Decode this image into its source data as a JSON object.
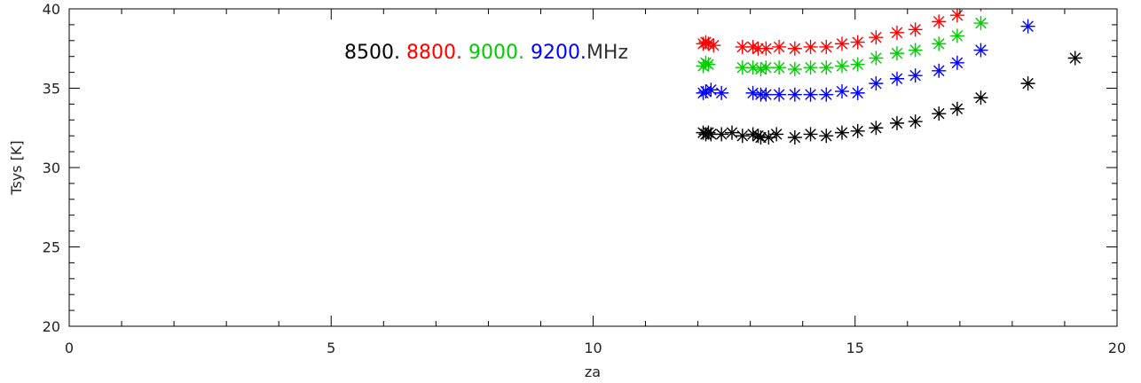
{
  "chart_data": {
    "type": "scatter",
    "title": "",
    "xlabel": "za",
    "ylabel": "Tsys [K]",
    "xlim": [
      0,
      20
    ],
    "ylim": [
      20,
      40
    ],
    "x_ticks": [
      "0",
      "5",
      "10",
      "15",
      "20"
    ],
    "y_ticks": [
      "20",
      "25",
      "30",
      "35",
      "40"
    ],
    "grid": false,
    "legend_unit": "MHz",
    "marker": "asterisk",
    "series": [
      {
        "name": "8500.",
        "color": "#000000",
        "points": [
          [
            12.1,
            32.2
          ],
          [
            12.15,
            32.1
          ],
          [
            12.2,
            32.2
          ],
          [
            12.25,
            32.1
          ],
          [
            12.45,
            32.1
          ],
          [
            12.65,
            32.2
          ],
          [
            12.85,
            32.0
          ],
          [
            13.05,
            32.1
          ],
          [
            13.15,
            32.0
          ],
          [
            13.2,
            31.9
          ],
          [
            13.35,
            31.9
          ],
          [
            13.5,
            32.1
          ],
          [
            13.85,
            31.9
          ],
          [
            14.15,
            32.1
          ],
          [
            14.45,
            32.0
          ],
          [
            14.75,
            32.2
          ],
          [
            15.05,
            32.3
          ],
          [
            15.4,
            32.5
          ],
          [
            15.8,
            32.8
          ],
          [
            16.15,
            32.9
          ],
          [
            16.6,
            33.4
          ],
          [
            16.95,
            33.7
          ],
          [
            17.4,
            34.4
          ],
          [
            18.3,
            35.3
          ],
          [
            19.2,
            36.9
          ]
        ]
      },
      {
        "name": "8800.",
        "color": "#ff0000",
        "points": [
          [
            12.1,
            37.8
          ],
          [
            12.15,
            37.9
          ],
          [
            12.2,
            37.8
          ],
          [
            12.3,
            37.7
          ],
          [
            12.85,
            37.6
          ],
          [
            13.05,
            37.6
          ],
          [
            13.15,
            37.5
          ],
          [
            13.3,
            37.5
          ],
          [
            13.55,
            37.6
          ],
          [
            13.85,
            37.5
          ],
          [
            14.15,
            37.6
          ],
          [
            14.45,
            37.6
          ],
          [
            14.75,
            37.8
          ],
          [
            15.05,
            37.9
          ],
          [
            15.4,
            38.2
          ],
          [
            15.8,
            38.5
          ],
          [
            16.15,
            38.7
          ],
          [
            16.6,
            39.2
          ],
          [
            16.95,
            39.6
          ],
          [
            17.4,
            40.3
          ]
        ]
      },
      {
        "name": "9000.",
        "color": "#00cc00",
        "points": [
          [
            12.1,
            36.4
          ],
          [
            12.15,
            36.6
          ],
          [
            12.2,
            36.5
          ],
          [
            12.85,
            36.3
          ],
          [
            13.05,
            36.3
          ],
          [
            13.2,
            36.2
          ],
          [
            13.3,
            36.3
          ],
          [
            13.55,
            36.3
          ],
          [
            13.85,
            36.2
          ],
          [
            14.15,
            36.3
          ],
          [
            14.45,
            36.3
          ],
          [
            14.75,
            36.4
          ],
          [
            15.05,
            36.5
          ],
          [
            15.4,
            36.9
          ],
          [
            15.8,
            37.2
          ],
          [
            16.15,
            37.4
          ],
          [
            16.6,
            37.8
          ],
          [
            16.95,
            38.3
          ],
          [
            17.4,
            39.1
          ]
        ]
      },
      {
        "name": "9200.",
        "color": "#0000ff",
        "points": [
          [
            12.1,
            34.7
          ],
          [
            12.15,
            34.8
          ],
          [
            12.25,
            34.9
          ],
          [
            12.45,
            34.7
          ],
          [
            13.05,
            34.7
          ],
          [
            13.2,
            34.6
          ],
          [
            13.3,
            34.6
          ],
          [
            13.55,
            34.6
          ],
          [
            13.85,
            34.6
          ],
          [
            14.15,
            34.6
          ],
          [
            14.45,
            34.6
          ],
          [
            14.75,
            34.8
          ],
          [
            15.05,
            34.7
          ],
          [
            15.4,
            35.3
          ],
          [
            15.8,
            35.6
          ],
          [
            16.15,
            35.8
          ],
          [
            16.6,
            36.1
          ],
          [
            16.95,
            36.6
          ],
          [
            17.4,
            37.4
          ],
          [
            18.3,
            38.9
          ]
        ]
      }
    ]
  }
}
